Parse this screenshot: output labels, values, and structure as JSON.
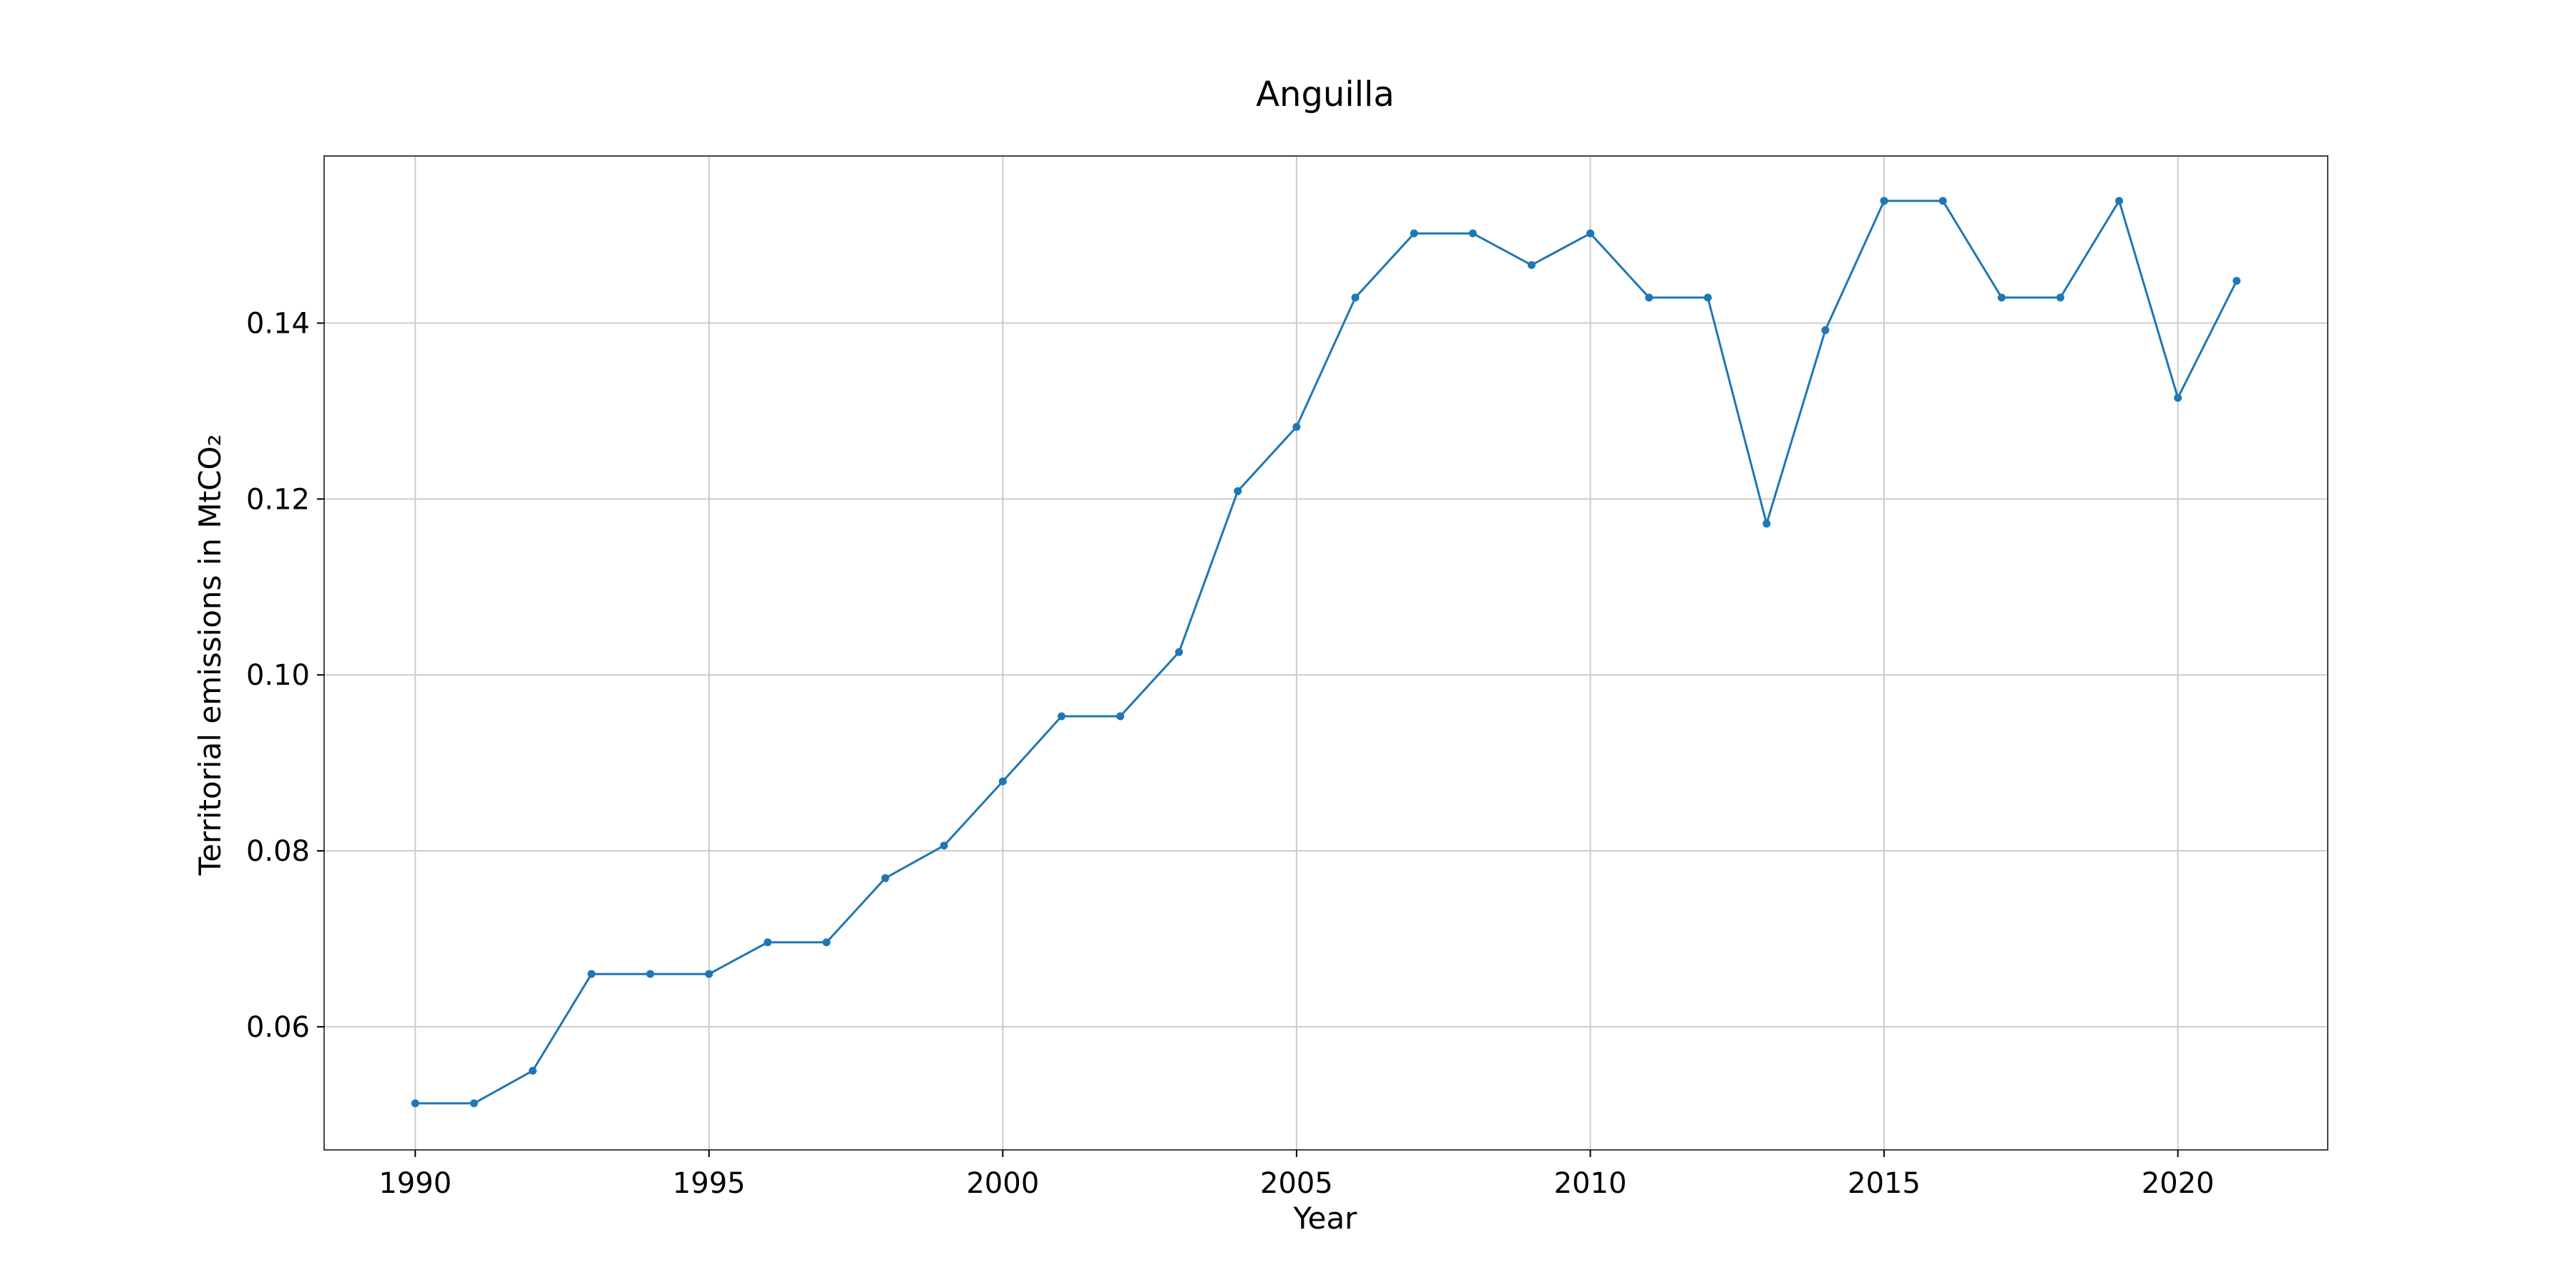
{
  "chart_data": {
    "type": "line",
    "title": "Anguilla",
    "xlabel": "Year",
    "ylabel": "Territorial emissions in MtCO₂",
    "xlim": [
      1988.45,
      2022.55
    ],
    "ylim": [
      0.046,
      0.159
    ],
    "xticks": [
      1990,
      1995,
      2000,
      2005,
      2010,
      2015,
      2020
    ],
    "yticks": [
      0.06,
      0.08,
      0.1,
      0.12,
      0.14
    ],
    "ytick_labels": [
      "0.06",
      "0.08",
      "0.10",
      "0.12",
      "0.14"
    ],
    "grid": true,
    "markers": true,
    "colors": {
      "series": "#1f77b4"
    },
    "series": [
      {
        "x": [
          1990,
          1991,
          1992,
          1993,
          1994,
          1995,
          1996,
          1997,
          1998,
          1999,
          2000,
          2001,
          2002,
          2003,
          2004,
          2005,
          2006,
          2007,
          2008,
          2009,
          2010,
          2011,
          2012,
          2013,
          2014,
          2015,
          2016,
          2017,
          2018,
          2019,
          2020,
          2021
        ],
        "values": [
          0.0513,
          0.0513,
          0.055,
          0.066,
          0.066,
          0.066,
          0.0696,
          0.0696,
          0.0769,
          0.0806,
          0.0879,
          0.0953,
          0.0953,
          0.1026,
          0.1209,
          0.1282,
          0.1429,
          0.1502,
          0.1502,
          0.1466,
          0.1502,
          0.1429,
          0.1429,
          0.1172,
          0.1392,
          0.1539,
          0.1539,
          0.1429,
          0.1429,
          0.1539,
          0.1315,
          0.1448
        ]
      }
    ]
  }
}
